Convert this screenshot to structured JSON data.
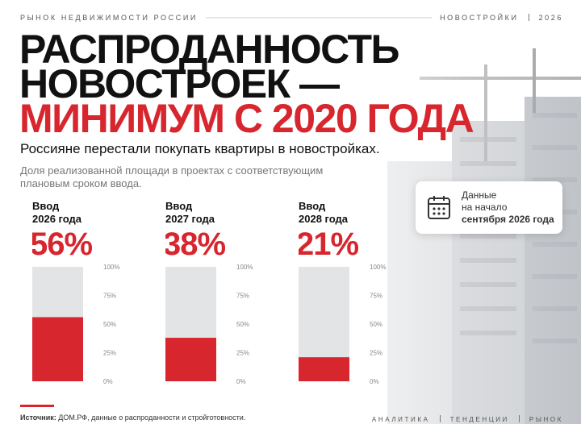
{
  "header": {
    "left": "РЫНОК НЕДВИЖИМОСТИ РОССИИ",
    "right": [
      "НОВОСТРОЙКИ",
      "2026"
    ]
  },
  "title": [
    "РАСПРОДАННОСТЬ",
    "НОВОСТРОЕК —",
    "МИНИМУМ С 2020 ГОДА"
  ],
  "subtitle": "Россияне перестали покупать квартиры в новостройках.",
  "description": "Доля реализованной площади в проектах с соответствующим плановым сроком ввода.",
  "note": [
    "Данные",
    "на начало",
    "сентября 2026 года"
  ],
  "chart_data": [
    {
      "type": "bar",
      "title": [
        "Ввод",
        "2026 года"
      ],
      "values": [
        56
      ],
      "value_labels": [
        "56%"
      ],
      "color": "#d7262e",
      "track_color": "#e3e4e6",
      "ylim": [
        0,
        100
      ],
      "yticks": [
        {
          "value": 0,
          "label": "0%"
        },
        {
          "value": 25,
          "label": "25%"
        },
        {
          "value": 50,
          "label": "50%"
        },
        {
          "value": 75,
          "label": "75%"
        },
        {
          "value": 100,
          "label": "100%"
        }
      ]
    },
    {
      "type": "bar",
      "title": [
        "Ввод",
        "2027 года"
      ],
      "values": [
        38
      ],
      "value_labels": [
        "38%"
      ],
      "color": "#d7262e",
      "track_color": "#e3e4e6",
      "ylim": [
        0,
        100
      ],
      "yticks": [
        {
          "value": 0,
          "label": "0%"
        },
        {
          "value": 25,
          "label": "25%"
        },
        {
          "value": 50,
          "label": "50%"
        },
        {
          "value": 75,
          "label": "75%"
        },
        {
          "value": 100,
          "label": "100%"
        }
      ]
    },
    {
      "type": "bar",
      "title": [
        "Ввод",
        "2028 года"
      ],
      "values": [
        21
      ],
      "value_labels": [
        "21%"
      ],
      "color": "#d7262e",
      "track_color": "#e3e4e6",
      "ylim": [
        0,
        100
      ],
      "yticks": [
        {
          "value": 0,
          "label": "0%"
        },
        {
          "value": 25,
          "label": "25%"
        },
        {
          "value": 50,
          "label": "50%"
        },
        {
          "value": 75,
          "label": "75%"
        },
        {
          "value": 100,
          "label": "100%"
        }
      ]
    }
  ],
  "footer": {
    "source_label": "Источник:",
    "source": "ДОМ.РФ, данные о распроданности и стройготовности.",
    "tags": [
      "АНАЛИТИКА",
      "ТЕНДЕНЦИИ",
      "РЫНОК"
    ]
  }
}
